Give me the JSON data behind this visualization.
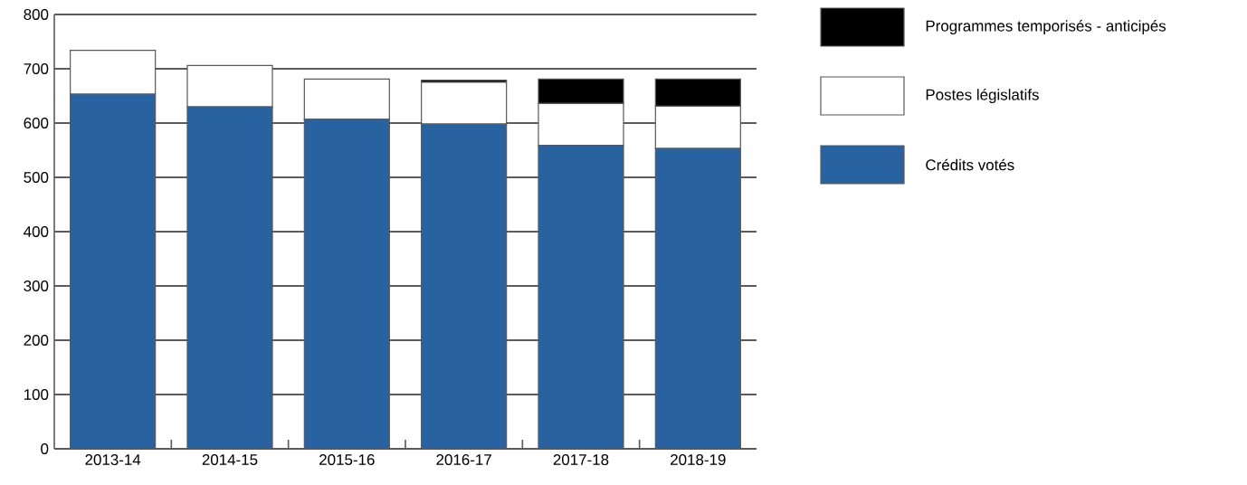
{
  "chart_data": {
    "type": "bar",
    "stacked": true,
    "categories": [
      "2013-14",
      "2014-15",
      "2015-16",
      "2016-17",
      "2017-18",
      "2018-19"
    ],
    "series": [
      {
        "name": "Crédits votés",
        "color": "#2862a0",
        "values": [
          653,
          630,
          607,
          598,
          559,
          553
        ]
      },
      {
        "name": "Postes législatifs",
        "color": "#ffffff",
        "values": [
          81,
          76,
          74,
          77,
          77,
          78
        ]
      },
      {
        "name": "Programmes temporisés - anticipés",
        "color": "#000000",
        "values": [
          null,
          null,
          null,
          4,
          45,
          50
        ]
      }
    ],
    "ylim": [
      0,
      800
    ],
    "yticks": [
      0,
      100,
      200,
      300,
      400,
      500,
      600,
      700,
      800
    ],
    "grid": "y",
    "legend": "right"
  }
}
